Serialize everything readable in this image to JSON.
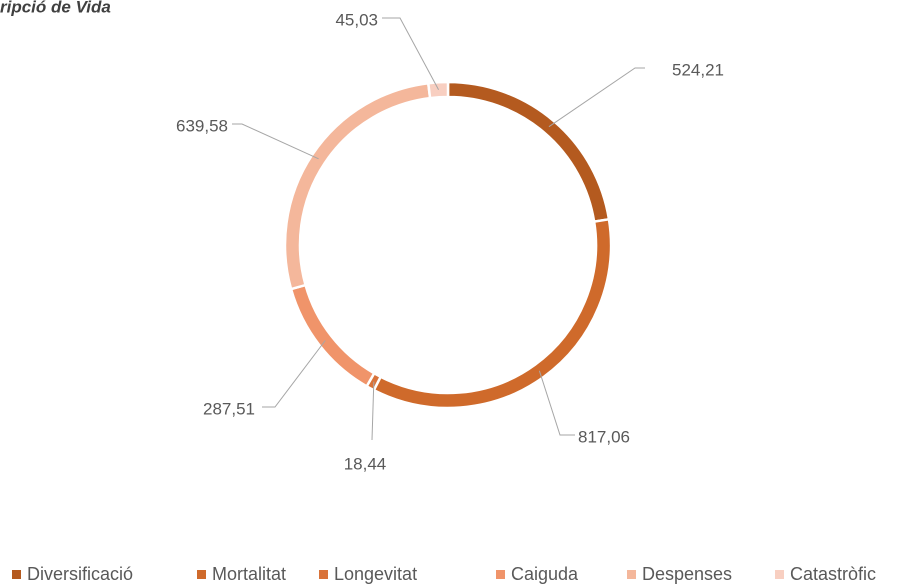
{
  "chart_data": {
    "type": "doughnut",
    "title": "ripció de Vida",
    "categories": [
      "Diversificació",
      "Mortalitat",
      "Longevitat",
      "Caiguda",
      "Despenses",
      "Catastròfic"
    ],
    "values": [
      524.21,
      817.06,
      18.44,
      287.51,
      639.58,
      45.03
    ],
    "value_labels": [
      "524,21",
      "817,06",
      "18,44",
      "287,51",
      "639,58",
      "45,03"
    ],
    "colors": [
      "#b45a1f",
      "#cf6a2b",
      "#d9733a",
      "#f0946a",
      "#f4b79b",
      "#f8cfc1"
    ],
    "legend": "bottom"
  }
}
